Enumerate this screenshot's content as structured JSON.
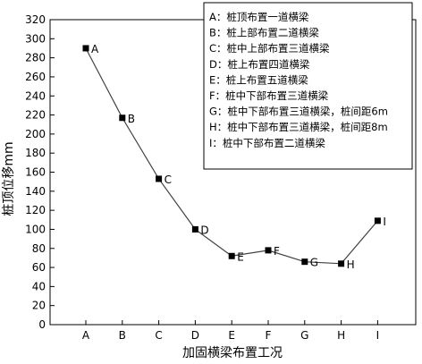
{
  "chart_data": {
    "type": "line",
    "title": "",
    "xlabel": "加固横梁布置工况",
    "ylabel": "桩顶位移mm",
    "ylim": [
      0,
      320
    ],
    "yticks": [
      0,
      20,
      40,
      60,
      80,
      100,
      120,
      140,
      160,
      180,
      200,
      220,
      240,
      260,
      280,
      300,
      320
    ],
    "grid": false,
    "legend_position": "top-right",
    "categories": [
      "A",
      "B",
      "C",
      "D",
      "E",
      "F",
      "G",
      "H",
      "I"
    ],
    "series": [
      {
        "values": [
          290,
          217,
          153,
          100,
          72,
          78,
          66,
          64,
          109
        ],
        "point_labels": [
          "A",
          "B",
          "C",
          "D",
          "E",
          "F",
          "G",
          "H",
          "I"
        ],
        "line_color": "#404040",
        "marker_color": "#000000"
      }
    ],
    "legend_items": [
      "A：桩顶布置一道横梁",
      "B：桩上部布置二道横梁",
      "C：桩中上部布置三道横梁",
      "D：桩上布置四道横梁",
      "E：桩上布置五道横梁",
      "F：桩中下部布置三道横梁",
      "G：桩中下部布置三道横梁，桩间距6m",
      "H：桩中下部布置三道横梁，桩间距8m",
      "I：桩中下部布置二道横梁"
    ]
  }
}
